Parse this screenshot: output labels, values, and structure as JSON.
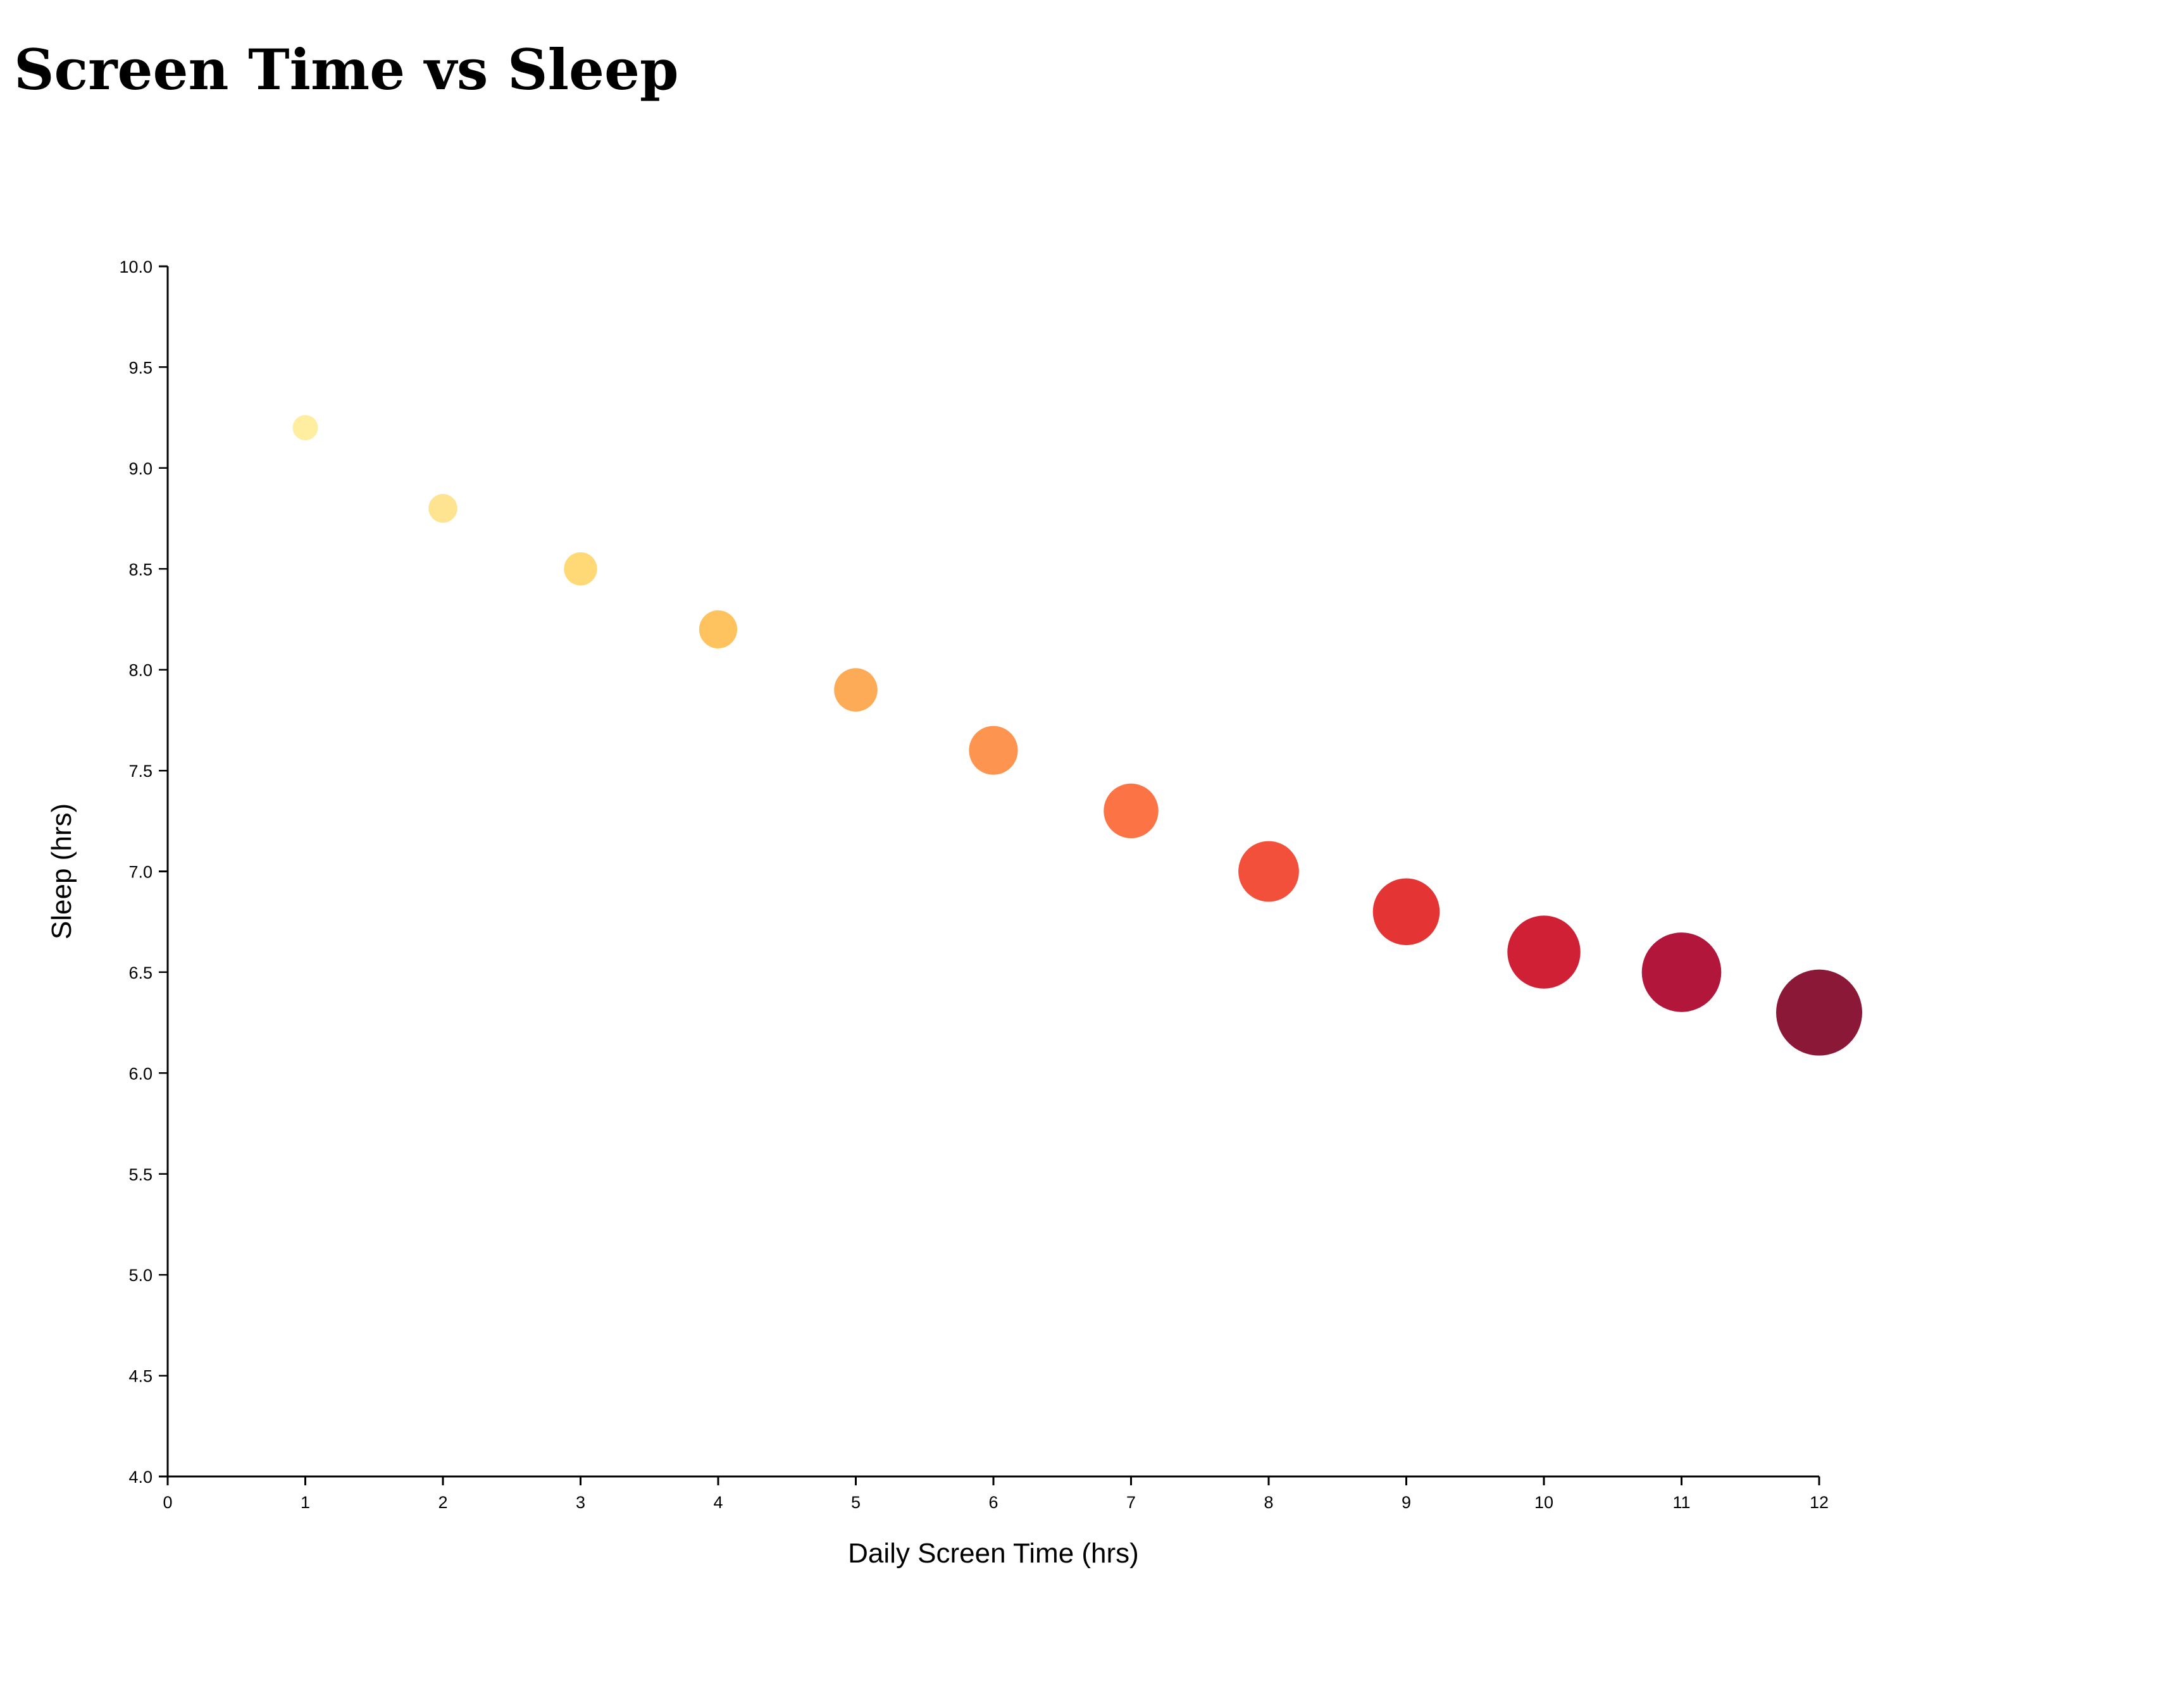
{
  "page": {
    "title": "Screen Time vs Sleep"
  },
  "chart_data": {
    "type": "scatter",
    "title": "Screen Time vs Sleep",
    "xlabel": "Daily Screen Time (hrs)",
    "ylabel": "Sleep (hrs)",
    "xlim": [
      0,
      12
    ],
    "ylim": [
      4.0,
      10.0
    ],
    "x_ticks": [
      0,
      1,
      2,
      3,
      4,
      5,
      6,
      7,
      8,
      9,
      10,
      11,
      12
    ],
    "y_ticks": [
      4.0,
      4.5,
      5.0,
      5.5,
      6.0,
      6.5,
      7.0,
      7.5,
      8.0,
      8.5,
      9.0,
      9.5,
      10.0
    ],
    "grid": false,
    "legend": "none",
    "encoding": "marker size and color increase with screen time",
    "points": [
      {
        "x": 1,
        "y": 9.2,
        "color": "#ffeda0"
      },
      {
        "x": 2,
        "y": 8.8,
        "color": "#fee391"
      },
      {
        "x": 3,
        "y": 8.5,
        "color": "#fed976"
      },
      {
        "x": 4,
        "y": 8.2,
        "color": "#fec35f"
      },
      {
        "x": 5,
        "y": 7.9,
        "color": "#feab57"
      },
      {
        "x": 6,
        "y": 7.6,
        "color": "#fd9450"
      },
      {
        "x": 7,
        "y": 7.3,
        "color": "#fc7446"
      },
      {
        "x": 8,
        "y": 7.0,
        "color": "#f2503b"
      },
      {
        "x": 9,
        "y": 6.8,
        "color": "#e43534"
      },
      {
        "x": 10,
        "y": 6.6,
        "color": "#cf2035"
      },
      {
        "x": 11,
        "y": 6.5,
        "color": "#b2163b"
      },
      {
        "x": 12,
        "y": 6.3,
        "color": "#8c1838"
      }
    ]
  }
}
